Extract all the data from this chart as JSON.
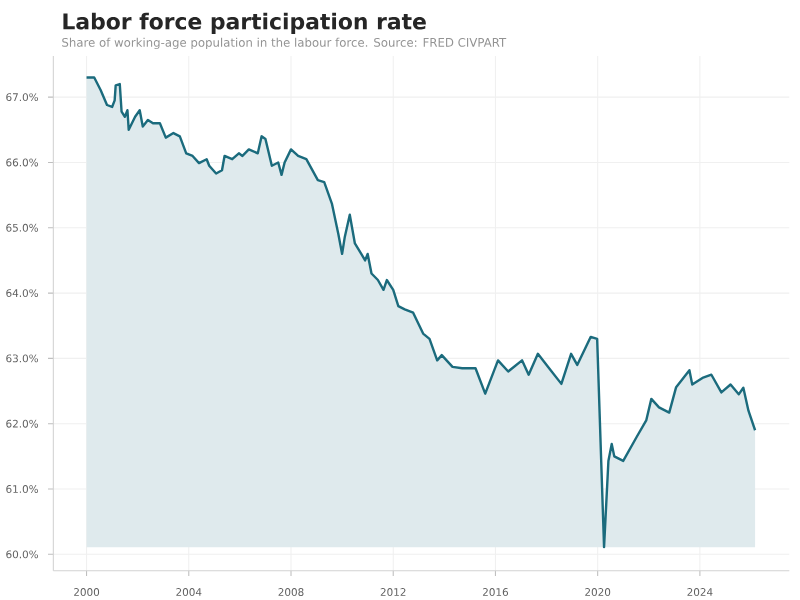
{
  "chart_data": {
    "type": "area",
    "title": "Labor force participation rate",
    "subtitle": "Share of working-age population in the labour force. Source: FRED CIVPART",
    "x": [
      2000.0,
      2000.3,
      2000.55,
      2000.8,
      2001.0,
      2001.1,
      2001.14,
      2001.3,
      2001.37,
      2001.5,
      2001.6,
      2001.65,
      2001.9,
      2002.08,
      2002.2,
      2002.4,
      2002.6,
      2002.87,
      2003.1,
      2003.4,
      2003.65,
      2003.9,
      2004.15,
      2004.4,
      2004.7,
      2004.8,
      2005.07,
      2005.3,
      2005.4,
      2005.7,
      2005.96,
      2006.1,
      2006.35,
      2006.7,
      2006.85,
      2007.0,
      2007.25,
      2007.5,
      2007.63,
      2007.75,
      2008.0,
      2008.28,
      2008.6,
      2009.05,
      2009.3,
      2009.6,
      2009.85,
      2010.0,
      2010.1,
      2010.3,
      2010.5,
      2010.75,
      2010.9,
      2011.0,
      2011.15,
      2011.4,
      2011.62,
      2011.75,
      2012.0,
      2012.2,
      2012.45,
      2012.78,
      2013.17,
      2013.42,
      2013.72,
      2013.9,
      2014.32,
      2014.7,
      2015.22,
      2015.6,
      2016.1,
      2016.5,
      2017.04,
      2017.3,
      2017.66,
      2018.1,
      2018.58,
      2018.96,
      2019.2,
      2019.73,
      2019.98,
      2020.25,
      2020.42,
      2020.55,
      2020.65,
      2021.0,
      2021.53,
      2021.9,
      2022.1,
      2022.4,
      2022.8,
      2023.07,
      2023.59,
      2023.7,
      2024.1,
      2024.45,
      2024.84,
      2025.2,
      2025.52,
      2025.7,
      2025.9,
      2026.16
    ],
    "series": [
      {
        "color": "#1b6b7d",
        "values": [
          67.3,
          67.3,
          67.11,
          66.88,
          66.85,
          66.95,
          67.18,
          67.2,
          66.78,
          66.7,
          66.8,
          66.5,
          66.7,
          66.8,
          66.55,
          66.65,
          66.6,
          66.6,
          66.38,
          66.45,
          66.4,
          66.14,
          66.1,
          65.99,
          66.05,
          65.95,
          65.83,
          65.88,
          66.1,
          66.05,
          66.14,
          66.1,
          66.2,
          66.14,
          66.4,
          66.36,
          65.95,
          66.0,
          65.81,
          66.0,
          66.2,
          66.1,
          66.05,
          65.73,
          65.7,
          65.37,
          64.91,
          64.6,
          64.85,
          65.2,
          64.76,
          64.6,
          64.5,
          64.6,
          64.3,
          64.2,
          64.05,
          64.2,
          64.05,
          63.8,
          63.75,
          63.7,
          63.38,
          63.3,
          62.97,
          63.05,
          62.87,
          62.85,
          62.85,
          62.46,
          62.97,
          62.8,
          62.97,
          62.75,
          63.07,
          62.85,
          62.61,
          63.07,
          62.9,
          63.33,
          63.3,
          60.11,
          61.43,
          61.69,
          61.5,
          61.43,
          61.8,
          62.05,
          62.38,
          62.25,
          62.17,
          62.56,
          62.82,
          62.6,
          62.7,
          62.75,
          62.48,
          62.6,
          62.45,
          62.55,
          62.2,
          61.9
        ]
      }
    ],
    "xlim": [
      1998.7,
      2027.5
    ],
    "ylim": [
      59.75,
      67.63
    ],
    "xticks": [
      2000,
      2004,
      2008,
      2012,
      2016,
      2020,
      2024
    ],
    "yticks": [
      {
        "value": 60,
        "label": "60.0%"
      },
      {
        "value": 61,
        "label": "61.0%"
      },
      {
        "value": 62,
        "label": "62.0%"
      },
      {
        "value": 63,
        "label": "63.0%"
      },
      {
        "value": 64,
        "label": "64.0%"
      },
      {
        "value": 65,
        "label": "65.0%"
      },
      {
        "value": 66,
        "label": "66.0%"
      },
      {
        "value": 67,
        "label": "67.0%"
      }
    ],
    "grid": true
  }
}
